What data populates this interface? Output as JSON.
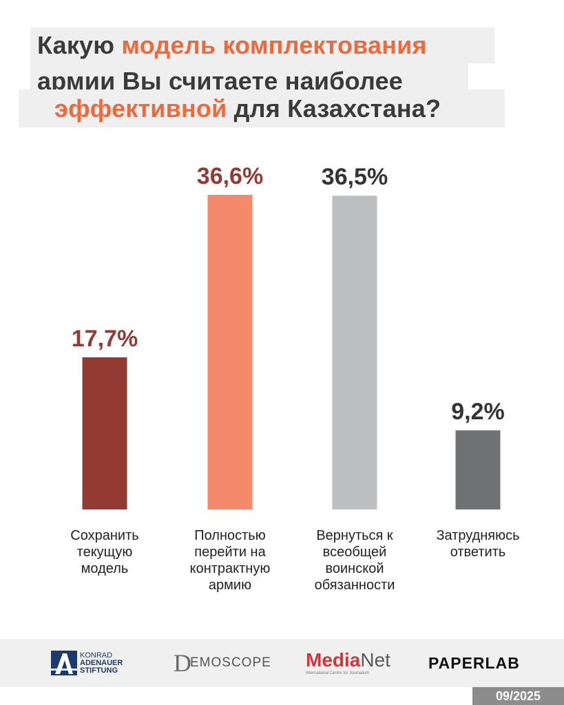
{
  "title": {
    "line1_part1": "Какую ",
    "line1_highlight": "модель комплектования",
    "line2": "армии Вы считаете наиболее",
    "line3_highlight": "эффективной",
    "line3_part2": " для Казахстана?"
  },
  "colors": {
    "highlight": "#ec6a3c",
    "title_text": "#3a3a3a",
    "title_bg": "#efefef"
  },
  "chart_data": {
    "type": "bar",
    "title": "Какую модель комплектования армии Вы считаете наиболее эффективной для Казахстана?",
    "categories": [
      "Сохранить\nтекущую\nмодель",
      "Полностью\nперейти на\nконтрактную\nармию",
      "Вернуться к\nвсеобщей\nвоинской\nобязанности",
      "Затрудняюсь\nответить"
    ],
    "values": [
      17.7,
      36.6,
      36.5,
      9.2
    ],
    "value_labels": [
      "17,7%",
      "36,6%",
      "36,5%",
      "9,2%"
    ],
    "bar_colors": [
      "#933b32",
      "#f4896b",
      "#bdbec0",
      "#707173"
    ],
    "label_colors": [
      "#933b32",
      "#933b32",
      "#333333",
      "#333333"
    ],
    "unit": "%",
    "ylim": [
      0,
      36.6
    ],
    "grid": false,
    "legend": "none"
  },
  "footer": {
    "kas_line1": "KONRAD",
    "kas_line2": "ADENAUER",
    "kas_line3": "STIFTUNG",
    "demoscope_d": "D",
    "demoscope_rest": "EMOSCOPE",
    "medianet_media": "Media",
    "medianet_net": "Net",
    "medianet_sub": "International Centre for Journalism",
    "paperlab": "PAPERLAB",
    "date": "09/2025"
  }
}
